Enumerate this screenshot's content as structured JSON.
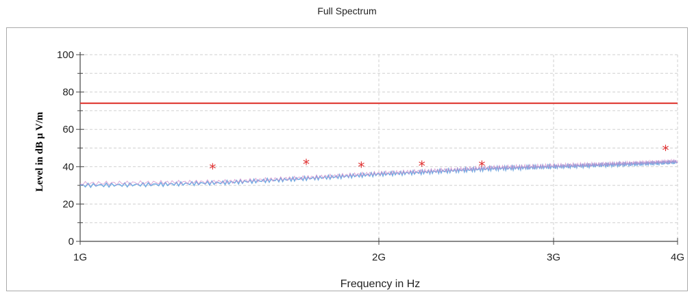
{
  "chart_data": {
    "type": "line",
    "title": "Full Spectrum",
    "xlabel": "Frequency in Hz",
    "ylabel": "Level in dB µ V/m",
    "x_scale": "log",
    "xlim": [
      1000000000,
      4000000000
    ],
    "ylim": [
      0,
      100
    ],
    "x_ticks": [
      {
        "value": 1000000000,
        "label": "1G"
      },
      {
        "value": 2000000000,
        "label": "2G"
      },
      {
        "value": 3000000000,
        "label": "3G"
      },
      {
        "value": 4000000000,
        "label": "4G"
      }
    ],
    "y_ticks": [
      {
        "value": 0,
        "label": "0"
      },
      {
        "value": 20,
        "label": "20"
      },
      {
        "value": 40,
        "label": "40"
      },
      {
        "value": 60,
        "label": "60"
      },
      {
        "value": 80,
        "label": "80"
      },
      {
        "value": 100,
        "label": "100"
      }
    ],
    "grid": true,
    "series": [
      {
        "kind": "limit",
        "color": "#e0403a",
        "x": [
          1000000000,
          4000000000
        ],
        "y": [
          74,
          74
        ]
      },
      {
        "kind": "trace",
        "color": "#6fa8e0",
        "x": [
          1000000000,
          1200000000,
          1400000000,
          1600000000,
          1800000000,
          2000000000,
          2200000000,
          2400000000,
          2600000000,
          2800000000,
          3000000000,
          3200000000,
          3400000000,
          3600000000,
          3800000000,
          4000000000
        ],
        "y": [
          30,
          30.5,
          31.5,
          33,
          34.5,
          36,
          37,
          38,
          39,
          39.5,
          40,
          40.5,
          41,
          41.5,
          42,
          42.5
        ]
      },
      {
        "kind": "trace",
        "color": "#d08ac8",
        "x": [
          1000000000,
          1200000000,
          1400000000,
          1600000000,
          1800000000,
          2000000000,
          2200000000,
          2400000000,
          2600000000,
          2800000000,
          3000000000,
          3200000000,
          3400000000,
          3600000000,
          3800000000,
          4000000000
        ],
        "y": [
          31,
          31.5,
          32,
          33.5,
          35,
          36.5,
          37.5,
          38.5,
          39.5,
          40,
          40.5,
          41,
          41.5,
          42,
          42.5,
          43
        ]
      },
      {
        "kind": "peaks",
        "color": "#e03030",
        "marker": "*",
        "x": [
          1360000000,
          1690000000,
          1920000000,
          2210000000,
          2540000000,
          3890000000
        ],
        "y": [
          39.5,
          42,
          40.5,
          41,
          41,
          49.5
        ]
      }
    ]
  }
}
